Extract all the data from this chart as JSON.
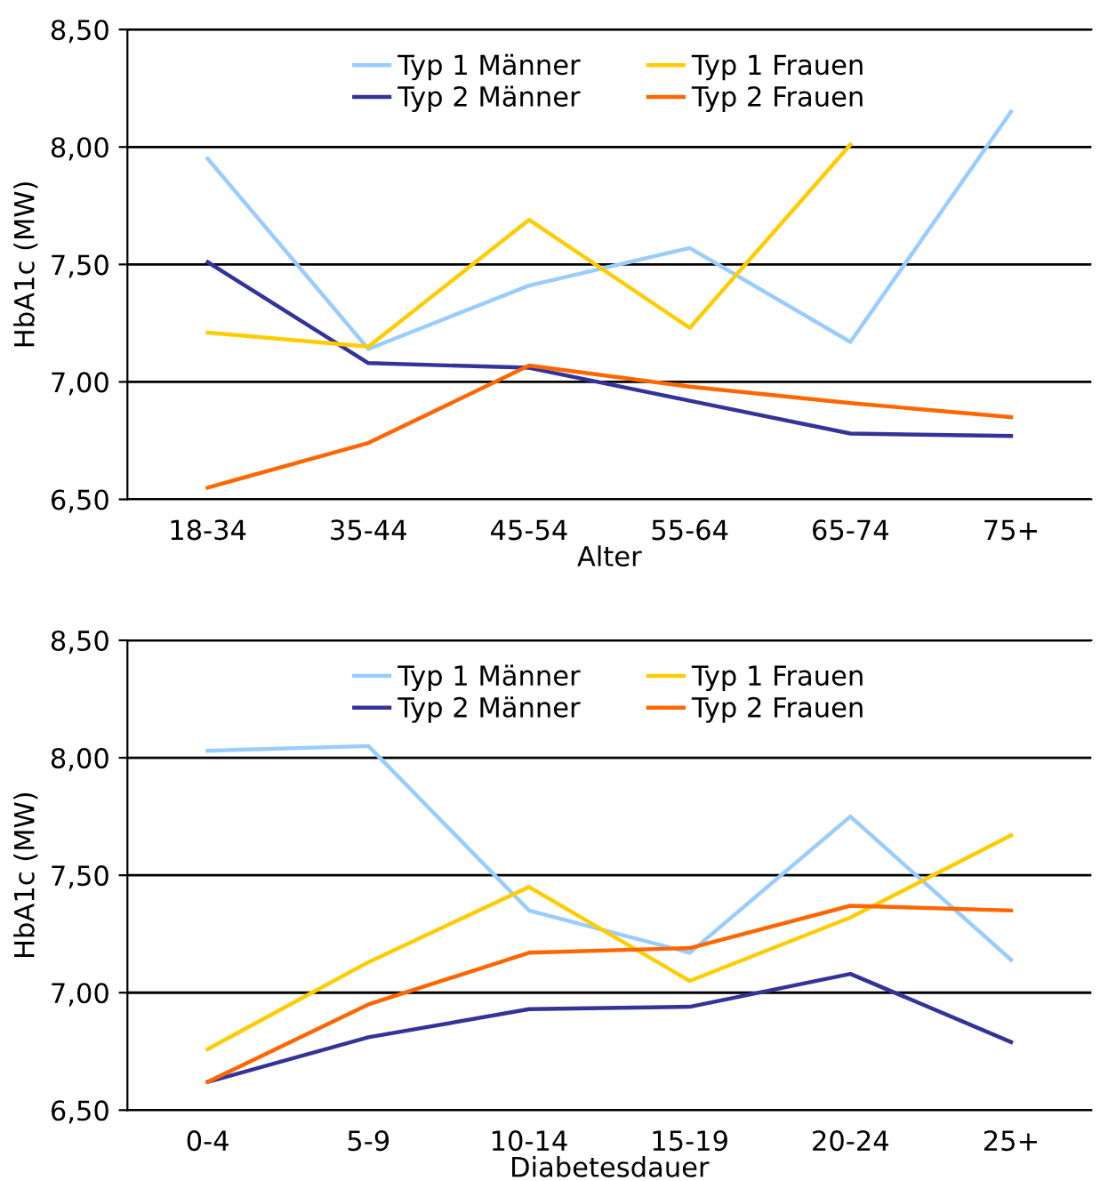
{
  "chart_data": [
    {
      "type": "line",
      "xlabel": "Alter",
      "ylabel": "HbA1c (MW)",
      "categories": [
        "18-34",
        "35-44",
        "45-54",
        "55-64",
        "65-74",
        "75+"
      ],
      "ylim": [
        6.5,
        8.5
      ],
      "yticks": [
        {
          "value": 6.5,
          "label": "6,50"
        },
        {
          "value": 7.0,
          "label": "7,00"
        },
        {
          "value": 7.5,
          "label": "7,50"
        },
        {
          "value": 8.0,
          "label": "8,00"
        },
        {
          "value": 8.5,
          "label": "8,50"
        }
      ],
      "grid": "y",
      "legend": "top",
      "marker": "none",
      "line_style": "solid",
      "series": [
        {
          "name": "Typ 1 Männer",
          "color": "#99ccff",
          "values": [
            7.95,
            7.14,
            7.41,
            7.57,
            7.17,
            8.15
          ]
        },
        {
          "name": "Typ 2 Männer",
          "color": "#333399",
          "values": [
            7.51,
            7.08,
            7.06,
            6.92,
            6.78,
            6.77
          ]
        },
        {
          "name": "Typ 1 Frauen",
          "color": "#ffcc00",
          "values": [
            7.21,
            7.15,
            7.69,
            7.23,
            8.01,
            null
          ]
        },
        {
          "name": "Typ 2 Frauen",
          "color": "#ff6600",
          "values": [
            6.55,
            6.74,
            7.07,
            6.98,
            6.91,
            6.85
          ]
        }
      ]
    },
    {
      "type": "line",
      "xlabel": "Diabetesdauer",
      "ylabel": "HbA1c (MW)",
      "categories": [
        "0-4",
        "5-9",
        "10-14",
        "15-19",
        "20-24",
        "25+"
      ],
      "ylim": [
        6.5,
        8.5
      ],
      "yticks": [
        {
          "value": 6.5,
          "label": "6,50"
        },
        {
          "value": 7.0,
          "label": "7,00"
        },
        {
          "value": 7.5,
          "label": "7,50"
        },
        {
          "value": 8.0,
          "label": "8,00"
        },
        {
          "value": 8.5,
          "label": "8,50"
        }
      ],
      "grid": "y",
      "legend": "top",
      "marker": "none",
      "line_style": "solid",
      "series": [
        {
          "name": "Typ 1 Männer",
          "color": "#99ccff",
          "values": [
            8.03,
            8.05,
            7.35,
            7.17,
            7.75,
            7.14
          ]
        },
        {
          "name": "Typ 2 Männer",
          "color": "#333399",
          "values": [
            6.62,
            6.81,
            6.93,
            6.94,
            7.08,
            6.79
          ]
        },
        {
          "name": "Typ 1 Frauen",
          "color": "#ffcc00",
          "values": [
            6.76,
            7.13,
            7.45,
            7.05,
            7.32,
            7.67
          ]
        },
        {
          "name": "Typ 2 Frauen",
          "color": "#ff6600",
          "values": [
            6.62,
            6.95,
            7.17,
            7.19,
            7.37,
            7.35
          ]
        }
      ]
    }
  ]
}
